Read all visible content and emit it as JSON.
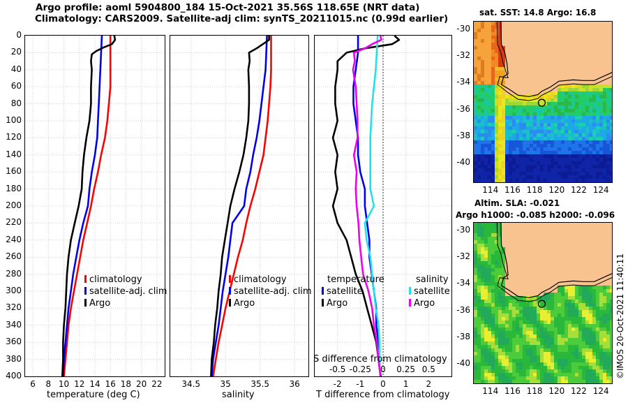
{
  "titles": {
    "line1": "Argo profile: aoml 5904800_184 15-Oct-2021 35.56S 118.65E (NRT data)",
    "line2": "Climatology: CARS2009. Satellite-adj clim: synTS_20211015.nc (0.99d earlier)"
  },
  "credit": "©IMOS 20-Oct-2021 11:40:11",
  "chart_data": [
    {
      "type": "line",
      "id": "temperature",
      "xlabel": "temperature (deg C)",
      "ylabel": "",
      "xlim": [
        5,
        23
      ],
      "ylim": [
        400,
        0
      ],
      "xticks": [
        6,
        8,
        10,
        12,
        14,
        16,
        18,
        20,
        22
      ],
      "yticks": [
        0,
        20,
        40,
        60,
        80,
        100,
        120,
        140,
        160,
        180,
        200,
        220,
        240,
        260,
        280,
        300,
        320,
        340,
        360,
        380,
        400
      ],
      "legend": [
        "climatology",
        "satellite-adj. clim",
        "Argo"
      ],
      "series": [
        {
          "name": "climatology",
          "color": "#ff0000",
          "depth": [
            0,
            20,
            40,
            60,
            80,
            100,
            120,
            140,
            160,
            180,
            200,
            220,
            240,
            260,
            280,
            300,
            320,
            340,
            360,
            380,
            400
          ],
          "values": [
            16.0,
            16.0,
            16.0,
            16.0,
            15.8,
            15.6,
            15.3,
            14.8,
            14.4,
            13.9,
            13.5,
            13.0,
            12.5,
            12.1,
            11.7,
            11.3,
            10.9,
            10.6,
            10.4,
            10.2,
            10.0
          ]
        },
        {
          "name": "satellite-adj. clim",
          "color": "#0000ee",
          "depth": [
            0,
            20,
            40,
            60,
            80,
            100,
            120,
            140,
            160,
            180,
            200,
            220,
            240,
            260,
            280,
            300,
            320,
            340,
            360,
            380,
            400
          ],
          "values": [
            14.9,
            14.8,
            14.7,
            14.6,
            14.5,
            14.4,
            14.3,
            14.0,
            13.6,
            13.3,
            13.1,
            12.5,
            12.0,
            11.6,
            11.2,
            10.9,
            10.6,
            10.4,
            10.2,
            10.0,
            9.9
          ]
        },
        {
          "name": "Argo",
          "color": "#000000",
          "depth": [
            0,
            5,
            10,
            14,
            18,
            22,
            30,
            40,
            60,
            80,
            100,
            120,
            140,
            160,
            180,
            200,
            220,
            240,
            260,
            280,
            300,
            320,
            340,
            360,
            380,
            400
          ],
          "values": [
            16.5,
            16.6,
            16.2,
            15.1,
            14.2,
            13.6,
            13.5,
            13.6,
            13.5,
            13.5,
            13.3,
            12.9,
            12.6,
            12.4,
            12.3,
            11.9,
            11.4,
            10.9,
            10.6,
            10.4,
            10.3,
            10.2,
            10.0,
            9.9,
            9.9,
            9.8
          ]
        }
      ]
    },
    {
      "type": "line",
      "id": "salinity",
      "xlabel": "salinity",
      "ylabel": "",
      "xlim": [
        34.2,
        36.2
      ],
      "ylim": [
        400,
        0
      ],
      "xticks": [
        34.5,
        35,
        35.5,
        36
      ],
      "legend": [
        "climatology",
        "satellite-adj. clim",
        "Argo"
      ],
      "series": [
        {
          "name": "climatology",
          "color": "#ff0000",
          "depth": [
            0,
            20,
            40,
            60,
            80,
            100,
            120,
            140,
            160,
            180,
            200,
            220,
            240,
            260,
            280,
            300,
            320,
            340,
            360,
            380,
            400
          ],
          "values": [
            35.66,
            35.66,
            35.66,
            35.65,
            35.63,
            35.61,
            35.58,
            35.55,
            35.49,
            35.43,
            35.36,
            35.3,
            35.25,
            35.18,
            35.12,
            35.06,
            35.0,
            34.95,
            34.9,
            34.86,
            34.82
          ]
        },
        {
          "name": "satellite-adj. clim",
          "color": "#0000ee",
          "depth": [
            0,
            20,
            40,
            60,
            80,
            100,
            120,
            140,
            160,
            180,
            200,
            220,
            240,
            260,
            280,
            300,
            320,
            340,
            360,
            380,
            400
          ],
          "values": [
            35.6,
            35.59,
            35.58,
            35.55,
            35.52,
            35.49,
            35.45,
            35.4,
            35.36,
            35.3,
            35.27,
            35.1,
            35.07,
            35.04,
            35.0,
            34.96,
            34.93,
            34.9,
            34.86,
            34.82,
            34.8
          ]
        },
        {
          "name": "Argo",
          "color": "#000000",
          "depth": [
            0,
            5,
            10,
            15,
            20,
            30,
            40,
            60,
            80,
            100,
            120,
            140,
            160,
            180,
            200,
            220,
            240,
            260,
            280,
            300,
            320,
            340,
            360,
            380,
            400
          ],
          "values": [
            35.63,
            35.63,
            35.54,
            35.45,
            35.34,
            35.35,
            35.33,
            35.34,
            35.34,
            35.33,
            35.3,
            35.26,
            35.2,
            35.13,
            35.07,
            35.03,
            34.99,
            34.95,
            34.93,
            34.9,
            34.88,
            34.85,
            34.83,
            34.8,
            34.79
          ]
        }
      ]
    },
    {
      "type": "line",
      "id": "difference",
      "xlabel": "T difference from climatology",
      "xlabel_top": "S difference from climatology",
      "xlim": [
        -3,
        3
      ],
      "ylim": [
        400,
        0
      ],
      "xticks_T": [
        -2,
        -1,
        0,
        1,
        2
      ],
      "xticks_S": [
        -0.5,
        -0.25,
        0,
        0.25,
        0.5
      ],
      "legend_temperature_title": "temperature",
      "legend_salinity_title": "salinity",
      "legend_temperature": [
        "satellite",
        "Argo"
      ],
      "legend_salinity": [
        "satellite",
        "Argo"
      ],
      "series": [
        {
          "name": "temperature satellite",
          "color": "#0000ee",
          "depth": [
            0,
            20,
            40,
            60,
            80,
            100,
            120,
            140,
            160,
            180,
            200,
            220,
            240,
            260,
            280,
            300,
            320,
            340,
            360,
            380,
            400
          ],
          "values": [
            -1.1,
            -1.1,
            -1.2,
            -1.3,
            -1.3,
            -1.2,
            -1.1,
            -1.1,
            -1.0,
            -0.8,
            -0.8,
            -0.7,
            -0.6,
            -0.6,
            -0.5,
            -0.4,
            -0.3,
            -0.3,
            -0.2,
            -0.2,
            -0.1
          ]
        },
        {
          "name": "temperature Argo",
          "color": "#000000",
          "depth": [
            0,
            5,
            10,
            15,
            20,
            30,
            40,
            60,
            80,
            100,
            120,
            140,
            160,
            180,
            200,
            220,
            240,
            260,
            280,
            300,
            320,
            340,
            360,
            380,
            400
          ],
          "values": [
            0.5,
            0.7,
            0.4,
            -0.8,
            -1.6,
            -2.0,
            -2.0,
            -2.1,
            -2.1,
            -2.0,
            -2.2,
            -2.0,
            -2.1,
            -2.0,
            -2.2,
            -2.0,
            -1.6,
            -1.4,
            -1.2,
            -0.9,
            -0.7,
            -0.5,
            -0.3,
            -0.2,
            -0.1
          ]
        },
        {
          "name": "salinity satellite",
          "color": "#22e0ee",
          "depth": [
            0,
            20,
            40,
            60,
            80,
            100,
            120,
            140,
            160,
            180,
            200,
            220,
            240,
            260,
            280,
            300,
            320,
            340,
            360,
            380,
            400
          ],
          "values": [
            -0.06,
            -0.07,
            -0.08,
            -0.1,
            -0.12,
            -0.13,
            -0.14,
            -0.14,
            -0.14,
            -0.14,
            -0.1,
            -0.2,
            -0.18,
            -0.14,
            -0.12,
            -0.1,
            -0.08,
            -0.05,
            -0.04,
            -0.04,
            -0.03
          ]
        },
        {
          "name": "salinity Argo",
          "color": "#ee00ee",
          "depth": [
            0,
            5,
            10,
            15,
            20,
            30,
            40,
            60,
            80,
            100,
            120,
            140,
            160,
            180,
            200,
            220,
            240,
            260,
            280,
            300,
            320,
            340,
            360,
            380,
            400
          ],
          "values": [
            -0.03,
            -0.02,
            -0.12,
            -0.2,
            -0.32,
            -0.31,
            -0.33,
            -0.3,
            -0.29,
            -0.28,
            -0.28,
            -0.32,
            -0.29,
            -0.3,
            -0.29,
            -0.27,
            -0.26,
            -0.24,
            -0.22,
            -0.16,
            -0.12,
            -0.1,
            -0.07,
            -0.05,
            -0.03
          ]
        }
      ]
    },
    {
      "type": "heatmap",
      "id": "sst-map",
      "title": "sat. SST: 14.8 Argo: 16.8",
      "xticks": [
        114,
        116,
        118,
        120,
        122,
        124
      ],
      "yticks": [
        -30,
        -32,
        -34,
        -36,
        -38,
        -40
      ],
      "xlim": [
        112.5,
        125
      ],
      "ylim": [
        -41.5,
        -29.5
      ],
      "argo_position": [
        118.65,
        -35.56
      ]
    },
    {
      "type": "heatmap",
      "id": "sla-map",
      "title_line1": "Altim. SLA: -0.021",
      "title_line2": "Argo h1000: -0.085 h2000: -0.096",
      "xticks": [
        114,
        116,
        118,
        120,
        122,
        124
      ],
      "yticks": [
        -30,
        -32,
        -34,
        -36,
        -38,
        -40
      ],
      "xlim": [
        112.5,
        125
      ],
      "ylim": [
        -41.5,
        -29.5
      ],
      "argo_position": [
        118.65,
        -35.56
      ]
    }
  ]
}
